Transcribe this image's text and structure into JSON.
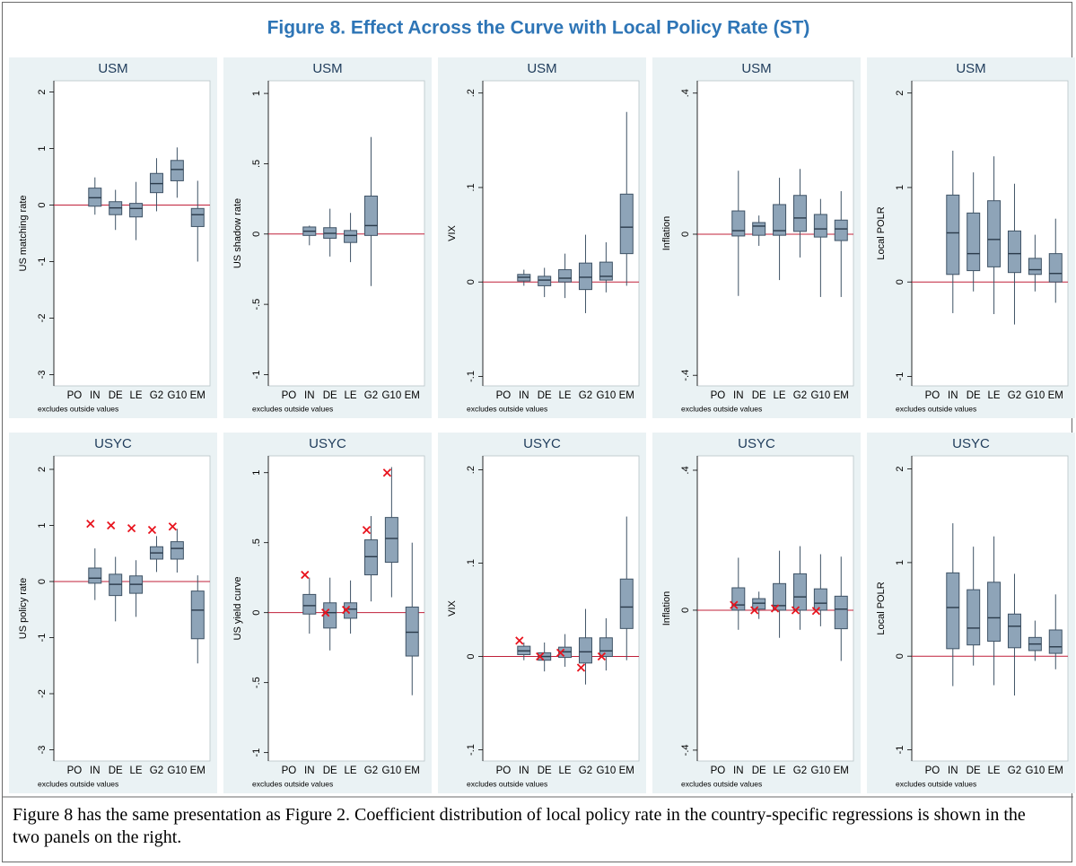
{
  "title": "Figure 8. Effect Across the Curve with Local Policy Rate (ST)",
  "caption": "Figure 8 has the same presentation as Figure 2. Coefficient distribution of local policy rate in the country-specific regressions is shown in the two panels on the right.",
  "chart_data": [
    {
      "type": "box",
      "title": "USM",
      "ylabel": "US matching rate",
      "note": "excludes outside values",
      "categories": [
        "PO",
        "IN",
        "DE",
        "LE",
        "G2",
        "G10",
        "EM"
      ],
      "boxes": [
        null,
        {
          "lo": -0.17,
          "q1": -0.02,
          "med": 0.13,
          "q3": 0.3,
          "hi": 0.49
        },
        {
          "lo": -0.44,
          "q1": -0.17,
          "med": -0.05,
          "q3": 0.06,
          "hi": 0.27
        },
        {
          "lo": -0.62,
          "q1": -0.21,
          "med": -0.06,
          "q3": 0.03,
          "hi": 0.41
        },
        {
          "lo": -0.11,
          "q1": 0.22,
          "med": 0.38,
          "q3": 0.56,
          "hi": 0.83
        },
        {
          "lo": 0.13,
          "q1": 0.43,
          "med": 0.63,
          "q3": 0.79,
          "hi": 1.02
        },
        {
          "lo": -1.0,
          "q1": -0.38,
          "med": -0.17,
          "q3": -0.06,
          "hi": 0.43
        }
      ],
      "ylim": [
        -3.2,
        2.2
      ],
      "yticks": [
        -3,
        -2,
        -1,
        0,
        1,
        2
      ],
      "refline": 0,
      "color": "#8ea4b8",
      "refline_color": "#c0203a"
    },
    {
      "type": "box",
      "title": "USM",
      "ylabel": "US shadow rate",
      "note": "excludes outside values",
      "categories": [
        "PO",
        "IN",
        "DE",
        "LE",
        "G2",
        "G10",
        "EM"
      ],
      "boxes": [
        null,
        {
          "lo": -0.08,
          "q1": -0.01,
          "med": 0.02,
          "q3": 0.05,
          "hi": 0.06
        },
        {
          "lo": -0.16,
          "q1": -0.03,
          "med": 0.005,
          "q3": 0.045,
          "hi": 0.18
        },
        {
          "lo": -0.2,
          "q1": -0.06,
          "med": -0.01,
          "q3": 0.025,
          "hi": 0.15
        },
        {
          "lo": -0.37,
          "q1": -0.01,
          "med": 0.06,
          "q3": 0.27,
          "hi": 0.69
        },
        null,
        null
      ],
      "ylim": [
        -1.08,
        1.09
      ],
      "yticks": [
        -1,
        {
          "value": -0.5,
          "label": "-.5"
        },
        0,
        {
          "value": 0.5,
          "label": ".5"
        },
        1
      ],
      "refline": 0,
      "color": "#8ea4b8",
      "refline_color": "#c0203a"
    },
    {
      "type": "box",
      "title": "USM",
      "ylabel": "VIX",
      "note": "excludes outside values",
      "categories": [
        "PO",
        "IN",
        "DE",
        "LE",
        "G2",
        "G10",
        "EM"
      ],
      "boxes": [
        null,
        {
          "lo": -0.004,
          "q1": 0.001,
          "med": 0.005,
          "q3": 0.008,
          "hi": 0.013
        },
        {
          "lo": -0.016,
          "q1": -0.004,
          "med": 0.002,
          "q3": 0.006,
          "hi": 0.015
        },
        {
          "lo": -0.017,
          "q1": 0.0,
          "med": 0.004,
          "q3": 0.013,
          "hi": 0.03
        },
        {
          "lo": -0.033,
          "q1": -0.008,
          "med": 0.005,
          "q3": 0.02,
          "hi": 0.05
        },
        {
          "lo": -0.011,
          "q1": 0.002,
          "med": 0.006,
          "q3": 0.021,
          "hi": 0.042
        },
        {
          "lo": -0.004,
          "q1": 0.03,
          "med": 0.058,
          "q3": 0.093,
          "hi": 0.18
        }
      ],
      "ylim": [
        -0.11,
        0.213
      ],
      "yticks": [
        {
          "value": -0.1,
          "label": "-.1"
        },
        0,
        {
          "value": 0.1,
          "label": ".1"
        },
        {
          "value": 0.2,
          "label": ".2"
        }
      ],
      "refline": 0,
      "color": "#8ea4b8",
      "refline_color": "#c0203a"
    },
    {
      "type": "box",
      "title": "USM",
      "ylabel": "Inflation",
      "note": "excludes outside values",
      "categories": [
        "PO",
        "IN",
        "DE",
        "LE",
        "G2",
        "G10",
        "EM"
      ],
      "boxes": [
        null,
        {
          "lo": -0.175,
          "q1": -0.005,
          "med": 0.01,
          "q3": 0.066,
          "hi": 0.18
        },
        {
          "lo": -0.033,
          "q1": -0.003,
          "med": 0.023,
          "q3": 0.033,
          "hi": 0.053
        },
        {
          "lo": -0.13,
          "q1": -0.003,
          "med": 0.01,
          "q3": 0.084,
          "hi": 0.16
        },
        {
          "lo": -0.066,
          "q1": 0.008,
          "med": 0.046,
          "q3": 0.11,
          "hi": 0.185
        },
        {
          "lo": -0.178,
          "q1": -0.008,
          "med": 0.015,
          "q3": 0.056,
          "hi": 0.1
        },
        {
          "lo": -0.178,
          "q1": -0.018,
          "med": 0.015,
          "q3": 0.04,
          "hi": 0.122
        }
      ],
      "ylim": [
        -0.43,
        0.435
      ],
      "yticks": [
        {
          "value": -0.4,
          "label": "-.4"
        },
        0,
        {
          "value": 0.4,
          "label": ".4"
        }
      ],
      "refline": 0,
      "color": "#8ea4b8",
      "refline_color": "#c0203a"
    },
    {
      "type": "box",
      "title": "USM",
      "ylabel": "Local POLR",
      "note": "excludes outside values",
      "categories": [
        "PO",
        "IN",
        "DE",
        "LE",
        "G2",
        "G10",
        "EM"
      ],
      "boxes": [
        null,
        {
          "lo": -0.33,
          "q1": 0.08,
          "med": 0.52,
          "q3": 0.92,
          "hi": 1.39
        },
        {
          "lo": -0.1,
          "q1": 0.12,
          "med": 0.3,
          "q3": 0.73,
          "hi": 1.16
        },
        {
          "lo": -0.34,
          "q1": 0.16,
          "med": 0.45,
          "q3": 0.86,
          "hi": 1.33
        },
        {
          "lo": -0.45,
          "q1": 0.1,
          "med": 0.3,
          "q3": 0.54,
          "hi": 1.04
        },
        {
          "lo": -0.1,
          "q1": 0.08,
          "med": 0.13,
          "q3": 0.25,
          "hi": 0.5
        },
        {
          "lo": -0.22,
          "q1": 0.0,
          "med": 0.09,
          "q3": 0.3,
          "hi": 0.67
        }
      ],
      "ylim": [
        -1.1,
        2.13
      ],
      "yticks": [
        -1,
        0,
        1,
        2
      ],
      "refline": 0,
      "color": "#8ea4b8",
      "refline_color": "#c0203a"
    },
    {
      "type": "box",
      "title": "USYC",
      "ylabel": "US policy rate",
      "note": "excludes outside values",
      "categories": [
        "PO",
        "IN",
        "DE",
        "LE",
        "G2",
        "G10",
        "EM"
      ],
      "boxes": [
        null,
        {
          "lo": -0.33,
          "q1": -0.03,
          "med": 0.06,
          "q3": 0.24,
          "hi": 0.59
        },
        {
          "lo": -0.71,
          "q1": -0.25,
          "med": -0.05,
          "q3": 0.13,
          "hi": 0.44
        },
        {
          "lo": -0.63,
          "q1": -0.21,
          "med": -0.05,
          "q3": 0.1,
          "hi": 0.38
        },
        {
          "lo": 0.17,
          "q1": 0.4,
          "med": 0.51,
          "q3": 0.62,
          "hi": 0.81
        },
        {
          "lo": 0.16,
          "q1": 0.4,
          "med": 0.59,
          "q3": 0.71,
          "hi": 0.94
        },
        {
          "lo": -1.46,
          "q1": -1.02,
          "med": -0.51,
          "q3": -0.17,
          "hi": 0.11
        }
      ],
      "markers": [
        null,
        1.03,
        1.0,
        0.95,
        0.92,
        0.98,
        null
      ],
      "marker_color": "#e8141e",
      "ylim": [
        -3.2,
        2.24
      ],
      "yticks": [
        -3,
        -2,
        -1,
        0,
        1,
        2
      ],
      "refline": 0,
      "color": "#8ea4b8",
      "refline_color": "#c0203a"
    },
    {
      "type": "box",
      "title": "USYC",
      "ylabel": "US yield curve",
      "note": "excludes outside values",
      "categories": [
        "PO",
        "IN",
        "DE",
        "LE",
        "G2",
        "G10",
        "EM"
      ],
      "boxes": [
        null,
        {
          "lo": -0.15,
          "q1": -0.01,
          "med": 0.05,
          "q3": 0.13,
          "hi": 0.25
        },
        {
          "lo": -0.27,
          "q1": -0.11,
          "med": 0.0,
          "q3": 0.07,
          "hi": 0.25
        },
        {
          "lo": -0.15,
          "q1": -0.04,
          "med": 0.025,
          "q3": 0.07,
          "hi": 0.23
        },
        {
          "lo": 0.08,
          "q1": 0.27,
          "med": 0.4,
          "q3": 0.52,
          "hi": 0.69
        },
        {
          "lo": 0.11,
          "q1": 0.36,
          "med": 0.53,
          "q3": 0.68,
          "hi": 1.04
        },
        {
          "lo": -0.59,
          "q1": -0.31,
          "med": -0.14,
          "q3": 0.04,
          "hi": 0.5
        }
      ],
      "markers": [
        null,
        0.27,
        0.0,
        0.02,
        0.59,
        1.0,
        null
      ],
      "marker_color": "#e8141e",
      "ylim": [
        -1.06,
        1.12
      ],
      "yticks": [
        -1,
        {
          "value": -0.5,
          "label": "-.5"
        },
        0,
        {
          "value": 0.5,
          "label": ".5"
        },
        1
      ],
      "refline": 0,
      "color": "#8ea4b8",
      "refline_color": "#c0203a"
    },
    {
      "type": "box",
      "title": "USYC",
      "ylabel": "VIX",
      "note": "excludes outside values",
      "categories": [
        "PO",
        "IN",
        "DE",
        "LE",
        "G2",
        "G10",
        "EM"
      ],
      "boxes": [
        null,
        {
          "lo": -0.004,
          "q1": 0.002,
          "med": 0.006,
          "q3": 0.011,
          "hi": 0.015
        },
        {
          "lo": -0.016,
          "q1": -0.004,
          "med": 0.0,
          "q3": 0.004,
          "hi": 0.015
        },
        {
          "lo": -0.011,
          "q1": -0.001,
          "med": 0.005,
          "q3": 0.01,
          "hi": 0.024
        },
        {
          "lo": -0.03,
          "q1": -0.007,
          "med": 0.005,
          "q3": 0.02,
          "hi": 0.051
        },
        {
          "lo": -0.015,
          "q1": 0.0,
          "med": 0.006,
          "q3": 0.02,
          "hi": 0.041
        },
        {
          "lo": -0.004,
          "q1": 0.03,
          "med": 0.053,
          "q3": 0.083,
          "hi": 0.15
        }
      ],
      "markers": [
        null,
        0.017,
        0.0,
        0.004,
        -0.012,
        0.0,
        null
      ],
      "marker_color": "#e8141e",
      "ylim": [
        -0.112,
        0.215
      ],
      "yticks": [
        {
          "value": -0.1,
          "label": "-.1"
        },
        0,
        {
          "value": 0.1,
          "label": ".1"
        },
        {
          "value": 0.2,
          "label": ".2"
        }
      ],
      "refline": 0,
      "color": "#8ea4b8",
      "refline_color": "#c0203a"
    },
    {
      "type": "box",
      "title": "USYC",
      "ylabel": "Inflation",
      "note": "excludes outside values",
      "categories": [
        "PO",
        "IN",
        "DE",
        "LE",
        "G2",
        "G10",
        "EM"
      ],
      "boxes": [
        null,
        {
          "lo": -0.056,
          "q1": 0.0,
          "med": 0.015,
          "q3": 0.064,
          "hi": 0.15
        },
        {
          "lo": -0.025,
          "q1": 0.003,
          "med": 0.02,
          "q3": 0.033,
          "hi": 0.053
        },
        {
          "lo": -0.079,
          "q1": 0.0,
          "med": 0.013,
          "q3": 0.076,
          "hi": 0.17
        },
        {
          "lo": -0.056,
          "q1": 0.0,
          "med": 0.038,
          "q3": 0.104,
          "hi": 0.183
        },
        {
          "lo": -0.046,
          "q1": 0.0,
          "med": 0.02,
          "q3": 0.061,
          "hi": 0.16
        },
        {
          "lo": -0.145,
          "q1": -0.053,
          "med": 0.003,
          "q3": 0.04,
          "hi": 0.153
        }
      ],
      "markers": [
        null,
        0.015,
        0.0,
        0.005,
        0.0,
        -0.002,
        null
      ],
      "marker_color": "#e8141e",
      "ylim": [
        -0.431,
        0.441
      ],
      "yticks": [
        {
          "value": -0.4,
          "label": "-.4"
        },
        0,
        {
          "value": 0.4,
          "label": ".4"
        }
      ],
      "refline": 0,
      "color": "#8ea4b8",
      "refline_color": "#c0203a"
    },
    {
      "type": "box",
      "title": "USYC",
      "ylabel": "Local POLR",
      "note": "excludes outside values",
      "categories": [
        "PO",
        "IN",
        "DE",
        "LE",
        "G2",
        "G10",
        "EM"
      ],
      "boxes": [
        null,
        {
          "lo": -0.32,
          "q1": 0.08,
          "med": 0.52,
          "q3": 0.89,
          "hi": 1.42
        },
        {
          "lo": -0.1,
          "q1": 0.12,
          "med": 0.3,
          "q3": 0.71,
          "hi": 1.17
        },
        {
          "lo": -0.31,
          "q1": 0.16,
          "med": 0.41,
          "q3": 0.79,
          "hi": 1.28
        },
        {
          "lo": -0.42,
          "q1": 0.09,
          "med": 0.32,
          "q3": 0.45,
          "hi": 0.88
        },
        {
          "lo": -0.05,
          "q1": 0.06,
          "med": 0.13,
          "q3": 0.2,
          "hi": 0.38
        },
        {
          "lo": -0.14,
          "q1": 0.03,
          "med": 0.1,
          "q3": 0.28,
          "hi": 0.66
        }
      ],
      "ylim": [
        -1.12,
        2.14
      ],
      "yticks": [
        -1,
        0,
        1,
        2
      ],
      "refline": 0,
      "color": "#8ea4b8",
      "refline_color": "#c0203a"
    }
  ]
}
